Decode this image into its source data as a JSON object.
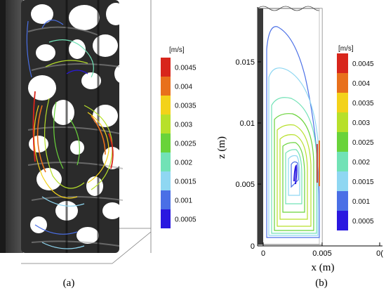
{
  "captions": {
    "left": "(a)",
    "right": "(b)"
  },
  "colorbar": {
    "unit": "[m/s]",
    "labels": [
      "0.0045",
      "0.004",
      "0.0035",
      "0.003",
      "0.0025",
      "0.002",
      "0.0015",
      "0.001",
      "0.0005"
    ],
    "colors": [
      "#d8261c",
      "#e8701c",
      "#f3d21a",
      "#b7e02a",
      "#69d33a",
      "#71e2b6",
      "#8fd7f2",
      "#4a6fe6",
      "#2a18e0"
    ]
  },
  "right_plot": {
    "y_ticks": [
      "0",
      "0.005",
      "0.01",
      "0.015"
    ],
    "x_ticks": [
      "0",
      "0.005",
      "0("
    ],
    "x_label": "x (m)",
    "y_label": "z (m)"
  }
}
